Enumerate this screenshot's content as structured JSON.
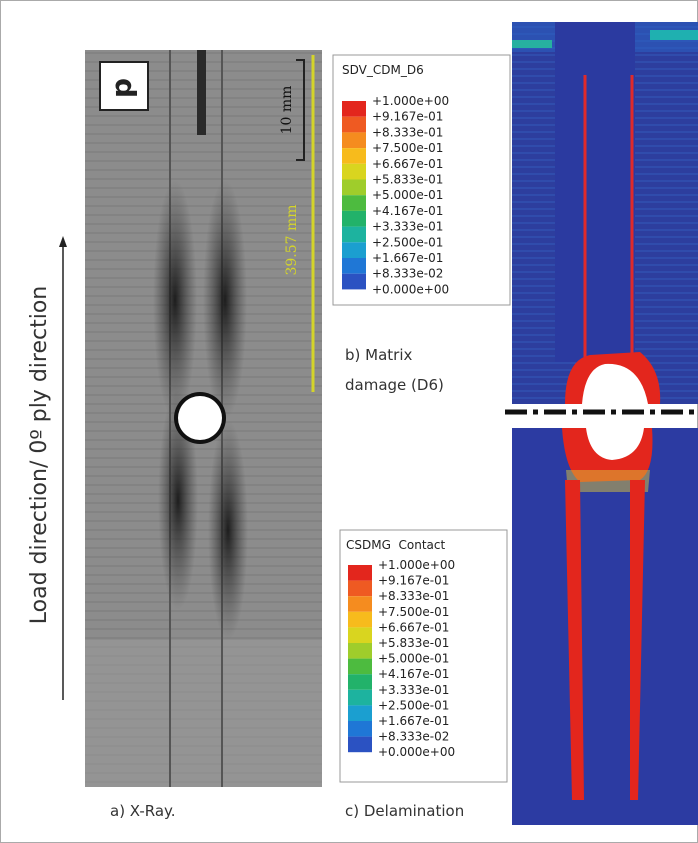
{
  "figure": {
    "side_label": "Load direction/ 0º ply direction",
    "xray": {
      "marker": "d",
      "scale": "10 mm",
      "length": "39.57 mm",
      "caption": "a) X-Ray."
    },
    "matrix": {
      "legend_title": "SDV_CDM_D6",
      "levels": [
        "+1.000e+00",
        "+9.167e-01",
        "+8.333e-01",
        "+7.500e-01",
        "+6.667e-01",
        "+5.833e-01",
        "+5.000e-01",
        "+4.167e-01",
        "+3.333e-01",
        "+2.500e-01",
        "+1.667e-01",
        "+8.333e-02",
        "+0.000e+00"
      ],
      "caption": [
        "b) Matrix",
        "damage (D6)"
      ]
    },
    "delam": {
      "legend_title": "CSDMG  Contact",
      "levels": [
        "+1.000e+00",
        "+9.167e-01",
        "+8.333e-01",
        "+7.500e-01",
        "+6.667e-01",
        "+5.833e-01",
        "+5.000e-01",
        "+4.167e-01",
        "+3.333e-01",
        "+2.500e-01",
        "+1.667e-01",
        "+8.333e-02",
        "+0.000e+00"
      ],
      "caption": "c) Delamination"
    }
  }
}
